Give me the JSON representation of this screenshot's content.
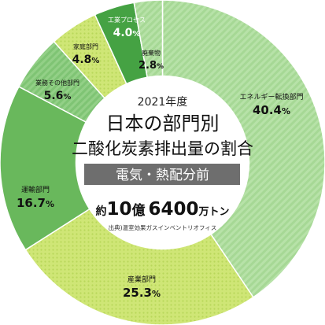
{
  "chart_data": {
    "type": "pie",
    "style": "donut",
    "year": "2021年度",
    "title_lines": [
      "日本の部門別",
      "二酸化炭素排出量の割合"
    ],
    "subtitle": "電気・熱配分前",
    "total": {
      "prefix": "約",
      "num1": "10",
      "unit1": "億",
      "num2": "6400",
      "unit2": "万トン"
    },
    "source": "出典)温室効果ガスインベントリオフィス",
    "slices": [
      {
        "label": "エネルギー転換部門",
        "value_text": "40.4",
        "value": 40.4,
        "color": "#b5e0a6",
        "pattern": "stripe-light",
        "text_color": "#111111"
      },
      {
        "label": "産業部門",
        "value_text": "25.3",
        "value": 25.3,
        "color": "#cde574",
        "pattern": "dots",
        "text_color": "#111111"
      },
      {
        "label": "運輸部門",
        "value_text": "16.7",
        "value": 16.7,
        "color": "#69b85c",
        "pattern": "none",
        "text_color": "#111111"
      },
      {
        "label": "業務その他部門",
        "value_text": "5.6",
        "value": 5.6,
        "color": "#8ecf82",
        "pattern": "stripe-dark",
        "text_color": "#111111"
      },
      {
        "label": "家庭部門",
        "value_text": "4.8",
        "value": 4.8,
        "color": "#cde574",
        "pattern": "dots",
        "text_color": "#111111"
      },
      {
        "label": "工業プロセス",
        "value_text": "4.0",
        "value": 4.0,
        "color": "#45a243",
        "pattern": "none",
        "text_color": "#ffffff"
      },
      {
        "label": "廃棄物",
        "value_text": "2.8",
        "value": 2.8,
        "color": "#b5e0a6",
        "pattern": "stripe-light",
        "text_color": "#111111"
      }
    ],
    "percent_sign": "%"
  }
}
